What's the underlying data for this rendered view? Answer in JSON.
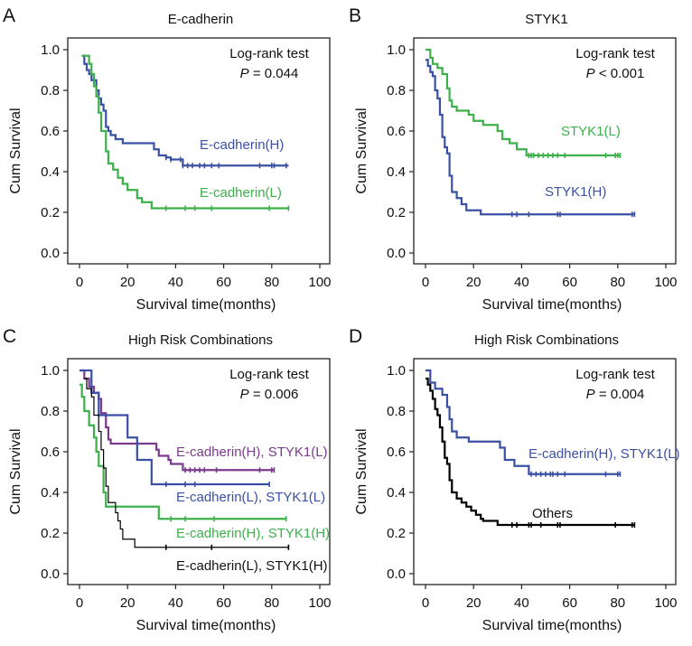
{
  "chart_data": [
    {
      "type": "line",
      "subtype": "kaplan-meier",
      "panel_letter": "A",
      "title": "E-cadherin",
      "xlabel": "Survival time(months)",
      "ylabel": "Cum Survival",
      "xlim": [
        0,
        100
      ],
      "ylim": [
        0,
        1
      ],
      "xticks": [
        "0",
        "20",
        "40",
        "60",
        "80",
        "100"
      ],
      "yticks": [
        "0.0",
        "0.2",
        "0.4",
        "0.6",
        "0.8",
        "1.0"
      ],
      "test_label": "Log-rank test",
      "p_symbol": "P",
      "p_text": "= 0.044",
      "grid": false,
      "series": [
        {
          "name": "E-cadherin(H)",
          "color": "#3a50a5",
          "steps": [
            [
              1,
              0.97
            ],
            [
              2,
              0.93
            ],
            [
              3,
              0.9
            ],
            [
              4,
              0.88
            ],
            [
              5,
              0.85
            ],
            [
              7,
              0.8
            ],
            [
              8,
              0.76
            ],
            [
              9,
              0.73
            ],
            [
              10,
              0.7
            ],
            [
              11,
              0.62
            ],
            [
              12,
              0.6
            ],
            [
              13,
              0.58
            ],
            [
              15,
              0.56
            ],
            [
              18,
              0.54
            ],
            [
              31,
              0.51
            ],
            [
              33,
              0.48
            ],
            [
              36,
              0.47
            ],
            [
              38,
              0.46
            ],
            [
              43,
              0.43
            ]
          ],
          "end": 87,
          "censored": [
            36,
            38,
            42,
            43,
            45,
            47,
            50,
            52,
            55,
            58,
            75,
            80,
            81,
            86
          ]
        },
        {
          "name": "E-cadherin(L)",
          "color": "#3cb04a",
          "steps": [
            [
              1,
              0.97
            ],
            [
              4,
              0.93
            ],
            [
              5,
              0.88
            ],
            [
              6,
              0.82
            ],
            [
              7,
              0.77
            ],
            [
              8,
              0.69
            ],
            [
              9,
              0.6
            ],
            [
              11,
              0.5
            ],
            [
              12,
              0.44
            ],
            [
              14,
              0.41
            ],
            [
              16,
              0.37
            ],
            [
              18,
              0.34
            ],
            [
              20,
              0.31
            ],
            [
              24,
              0.27
            ],
            [
              26,
              0.25
            ],
            [
              30,
              0.22
            ]
          ],
          "end": 87,
          "censored": [
            36,
            44,
            48,
            55,
            79,
            87
          ]
        }
      ]
    },
    {
      "type": "line",
      "subtype": "kaplan-meier",
      "panel_letter": "B",
      "title": "STYK1",
      "xlabel": "Survival time(months)",
      "ylabel": "Cum Survival",
      "xlim": [
        0,
        100
      ],
      "ylim": [
        0,
        1
      ],
      "xticks": [
        "0",
        "20",
        "40",
        "60",
        "80",
        "100"
      ],
      "yticks": [
        "0.0",
        "0.2",
        "0.4",
        "0.6",
        "0.8",
        "1.0"
      ],
      "test_label": "Log-rank test",
      "p_symbol": "P",
      "p_text": "< 0.001",
      "grid": false,
      "series": [
        {
          "name": "STYK1(L)",
          "color": "#3cb04a",
          "steps": [
            [
              0,
              1.0
            ],
            [
              2,
              0.96
            ],
            [
              3,
              0.93
            ],
            [
              5,
              0.91
            ],
            [
              7,
              0.88
            ],
            [
              9,
              0.81
            ],
            [
              10,
              0.75
            ],
            [
              11,
              0.72
            ],
            [
              13,
              0.7
            ],
            [
              18,
              0.68
            ],
            [
              20,
              0.65
            ],
            [
              24,
              0.63
            ],
            [
              30,
              0.6
            ],
            [
              32,
              0.56
            ],
            [
              35,
              0.54
            ],
            [
              38,
              0.51
            ],
            [
              42,
              0.48
            ]
          ],
          "end": 81,
          "censored": [
            43,
            44,
            45,
            47,
            49,
            51,
            53,
            55,
            58,
            75,
            79,
            80,
            81
          ]
        },
        {
          "name": "STYK1(H)",
          "color": "#3a50a5",
          "steps": [
            [
              0,
              0.95
            ],
            [
              1,
              0.92
            ],
            [
              2,
              0.89
            ],
            [
              3,
              0.87
            ],
            [
              4,
              0.8
            ],
            [
              5,
              0.76
            ],
            [
              6,
              0.68
            ],
            [
              7,
              0.57
            ],
            [
              8,
              0.52
            ],
            [
              9,
              0.49
            ],
            [
              10,
              0.38
            ],
            [
              11,
              0.3
            ],
            [
              13,
              0.27
            ],
            [
              15,
              0.24
            ],
            [
              17,
              0.21
            ],
            [
              23,
              0.19
            ]
          ],
          "end": 87,
          "censored": [
            36,
            38,
            43,
            55,
            56,
            86,
            87
          ]
        }
      ]
    },
    {
      "type": "line",
      "subtype": "kaplan-meier",
      "panel_letter": "C",
      "title": "High Risk Combinations",
      "xlabel": "Survival time(months)",
      "ylabel": "Cum Survival",
      "xlim": [
        0,
        100
      ],
      "ylim": [
        0,
        1
      ],
      "xticks": [
        "0",
        "20",
        "40",
        "60",
        "80",
        "100"
      ],
      "yticks": [
        "0.0",
        "0.2",
        "0.4",
        "0.6",
        "0.8",
        "1.0"
      ],
      "test_label": "Log-rank test",
      "p_symbol": "P",
      "p_text": "= 0.006",
      "grid": false,
      "series": [
        {
          "name": "E-cadherin(H), STYK1(L)",
          "color": "#7b3a8c",
          "steps": [
            [
              0,
              1.0
            ],
            [
              2,
              0.96
            ],
            [
              4,
              0.92
            ],
            [
              6,
              0.89
            ],
            [
              8,
              0.86
            ],
            [
              9,
              0.79
            ],
            [
              11,
              0.72
            ],
            [
              12,
              0.66
            ],
            [
              13,
              0.64
            ],
            [
              32,
              0.61
            ],
            [
              33,
              0.58
            ],
            [
              37,
              0.56
            ],
            [
              38,
              0.54
            ],
            [
              43,
              0.51
            ]
          ],
          "end": 81,
          "censored": [
            8,
            44,
            46,
            48,
            50,
            52,
            57,
            75,
            80,
            81
          ]
        },
        {
          "name": "E-cadherin(L), STYK1(L)",
          "color": "#3a50a5",
          "steps": [
            [
              0,
              1.0
            ],
            [
              5,
              0.89
            ],
            [
              8,
              0.78
            ],
            [
              20,
              0.67
            ],
            [
              24,
              0.56
            ],
            [
              30,
              0.44
            ]
          ],
          "end": 79,
          "censored": [
            36,
            44,
            48,
            79
          ]
        },
        {
          "name": "E-cadherin(H), STYK1(H)",
          "color": "#3cb04a",
          "steps": [
            [
              0,
              0.93
            ],
            [
              1,
              0.87
            ],
            [
              2,
              0.8
            ],
            [
              4,
              0.73
            ],
            [
              6,
              0.67
            ],
            [
              7,
              0.6
            ],
            [
              8,
              0.53
            ],
            [
              10,
              0.4
            ],
            [
              11,
              0.33
            ],
            [
              33,
              0.27
            ]
          ],
          "end": 86,
          "censored": [
            38,
            44,
            56,
            86
          ]
        },
        {
          "name": "E-cadherin(L), STYK1(H)",
          "color": "#000000",
          "steps": [
            [
              2,
              0.96
            ],
            [
              3,
              0.91
            ],
            [
              5,
              0.87
            ],
            [
              6,
              0.78
            ],
            [
              8,
              0.7
            ],
            [
              9,
              0.61
            ],
            [
              10,
              0.52
            ],
            [
              11,
              0.43
            ],
            [
              12,
              0.35
            ],
            [
              15,
              0.3
            ],
            [
              16,
              0.26
            ],
            [
              17,
              0.22
            ],
            [
              18,
              0.17
            ],
            [
              23,
              0.13
            ]
          ],
          "end": 87,
          "censored": [
            36,
            55,
            87
          ]
        }
      ]
    },
    {
      "type": "line",
      "subtype": "kaplan-meier",
      "panel_letter": "D",
      "title": "High Risk Combinations",
      "xlabel": "Survival time(months)",
      "ylabel": "Cum Survival",
      "xlim": [
        0,
        100
      ],
      "ylim": [
        0,
        1
      ],
      "xticks": [
        "0",
        "20",
        "40",
        "60",
        "80",
        "100"
      ],
      "yticks": [
        "0.0",
        "0.2",
        "0.4",
        "0.6",
        "0.8",
        "1.0"
      ],
      "test_label": "Log-rank test",
      "p_symbol": "P",
      "p_text": "= 0.004",
      "grid": false,
      "series": [
        {
          "name": "E-cadherin(H), STYK1(L)",
          "color": "#3a50a5",
          "steps": [
            [
              0,
              1.0
            ],
            [
              2,
              0.94
            ],
            [
              4,
              0.91
            ],
            [
              7,
              0.88
            ],
            [
              9,
              0.82
            ],
            [
              10,
              0.76
            ],
            [
              11,
              0.7
            ],
            [
              13,
              0.67
            ],
            [
              18,
              0.65
            ],
            [
              31,
              0.62
            ],
            [
              33,
              0.56
            ],
            [
              37,
              0.53
            ],
            [
              43,
              0.49
            ]
          ],
          "end": 81,
          "censored": [
            44,
            46,
            48,
            50,
            52,
            53,
            55,
            58,
            75,
            80,
            81
          ]
        },
        {
          "name": "Others",
          "color": "#000000",
          "steps": [
            [
              0,
              0.96
            ],
            [
              1,
              0.93
            ],
            [
              2,
              0.9
            ],
            [
              3,
              0.86
            ],
            [
              4,
              0.81
            ],
            [
              5,
              0.78
            ],
            [
              6,
              0.72
            ],
            [
              7,
              0.65
            ],
            [
              8,
              0.57
            ],
            [
              9,
              0.54
            ],
            [
              10,
              0.46
            ],
            [
              11,
              0.4
            ],
            [
              13,
              0.37
            ],
            [
              15,
              0.35
            ],
            [
              17,
              0.33
            ],
            [
              19,
              0.31
            ],
            [
              21,
              0.29
            ],
            [
              23,
              0.27
            ],
            [
              24,
              0.26
            ],
            [
              30,
              0.24
            ]
          ],
          "end": 87,
          "censored": [
            36,
            38,
            43,
            44,
            48,
            55,
            56,
            79,
            86,
            87
          ]
        }
      ]
    }
  ]
}
